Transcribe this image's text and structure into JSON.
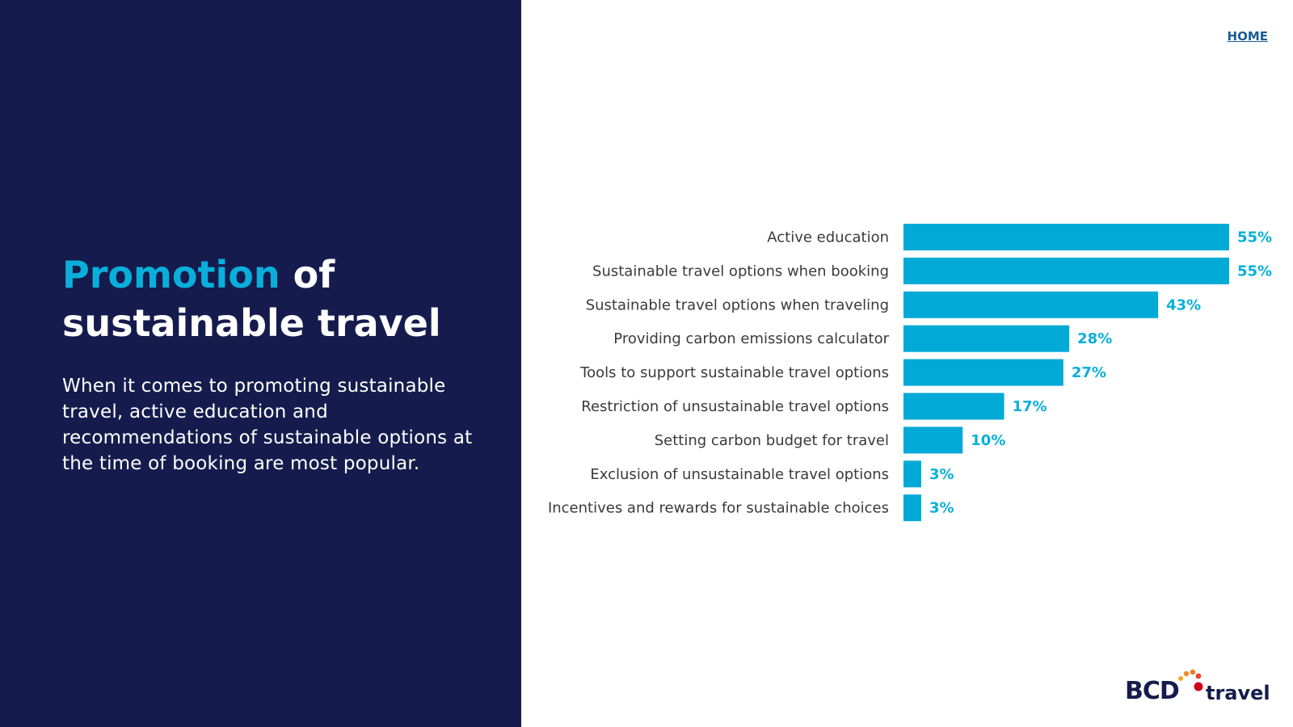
{
  "nav": {
    "home_label": "HOME"
  },
  "panel": {
    "title_accent": "Promotion",
    "title_rest_1": " of",
    "title_rest_2": "sustainable travel",
    "description": "When it comes to promoting sustainable travel, active education and recommendations of sustainable options at the time of booking are most popular."
  },
  "logo": {
    "bcd": "BCD",
    "word": "travel"
  },
  "colors": {
    "panel_bg": "#151c4d",
    "accent": "#09afda",
    "bar": "#00aad6",
    "label": "#3a3a3a"
  },
  "chart_data": {
    "type": "bar",
    "orientation": "horizontal",
    "categories": [
      "Active education",
      "Sustainable travel options when booking",
      "Sustainable travel options when traveling",
      "Providing carbon emissions calculator",
      "Tools to support sustainable travel options",
      "Restriction of unsustainable travel options",
      "Setting carbon budget for travel",
      "Exclusion of unsustainable travel options",
      "Incentives and rewards for sustainable choices"
    ],
    "values": [
      55,
      55,
      43,
      28,
      27,
      17,
      10,
      3,
      3
    ],
    "value_labels": [
      "55%",
      "55%",
      "43%",
      "28%",
      "27%",
      "17%",
      "10%",
      "3%",
      "3%"
    ],
    "xlim": [
      0,
      55
    ],
    "unit": "%",
    "grid": false,
    "legend": false
  }
}
